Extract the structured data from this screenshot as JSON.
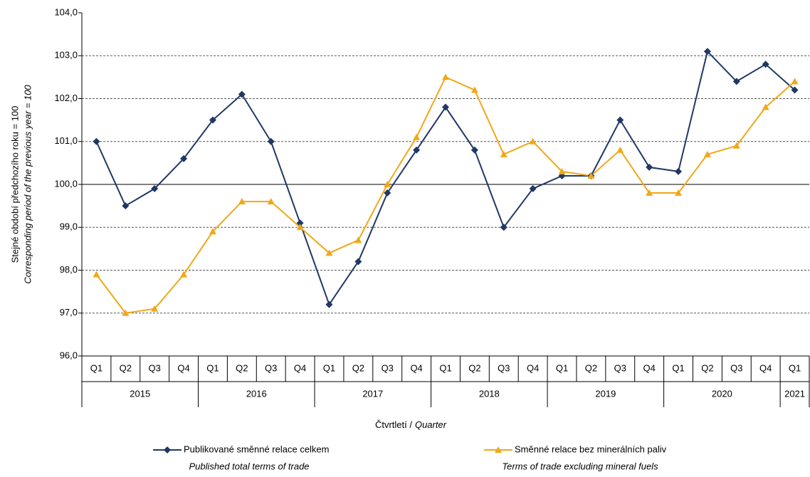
{
  "chart_data": {
    "type": "line",
    "y_label": "Stejné období předchozího roku = 100",
    "y_label_en": "Corresponding period of  the previous year = 100",
    "x_label": "Čtvrtletí /",
    "x_label_en": "Quarter",
    "categories": [
      "Q1",
      "Q2",
      "Q3",
      "Q4",
      "Q1",
      "Q2",
      "Q3",
      "Q4",
      "Q1",
      "Q2",
      "Q3",
      "Q4",
      "Q1",
      "Q2",
      "Q3",
      "Q4",
      "Q1",
      "Q2",
      "Q3",
      "Q4",
      "Q1",
      "Q2",
      "Q3",
      "Q4",
      "Q1"
    ],
    "years": [
      "2015",
      "2015",
      "2015",
      "2015",
      "2016",
      "2016",
      "2016",
      "2016",
      "2017",
      "2017",
      "2017",
      "2017",
      "2018",
      "2018",
      "2018",
      "2018",
      "2019",
      "2019",
      "2019",
      "2019",
      "2020",
      "2020",
      "2020",
      "2020",
      "2021"
    ],
    "series": [
      {
        "name": "Publikované směnné relace celkem",
        "name_en": "Published total terms of trade",
        "color": "#1f3864",
        "marker": "diamond",
        "values": [
          101.0,
          99.5,
          99.9,
          100.6,
          101.5,
          102.1,
          101.0,
          99.1,
          97.2,
          98.2,
          99.8,
          100.8,
          101.8,
          100.8,
          99.0,
          99.9,
          100.2,
          100.2,
          101.5,
          100.4,
          100.3,
          103.1,
          102.4,
          102.8,
          102.2
        ]
      },
      {
        "name": "Směnné relace bez minerálních paliv",
        "name_en": "Terms of trade excluding mineral fuels",
        "color": "#f0a818",
        "marker": "triangle",
        "values": [
          97.9,
          97.0,
          97.1,
          97.9,
          98.9,
          99.6,
          99.6,
          99.0,
          98.4,
          98.7,
          100.0,
          101.1,
          102.5,
          102.2,
          100.7,
          101.0,
          100.3,
          100.2,
          100.8,
          99.8,
          99.8,
          100.7,
          100.9,
          101.8,
          102.4
        ]
      }
    ],
    "ylim": [
      96,
      104
    ],
    "yticks": [
      {
        "value": 96,
        "label": "96,0"
      },
      {
        "value": 97,
        "label": "97,0"
      },
      {
        "value": 98,
        "label": "98,0"
      },
      {
        "value": 99,
        "label": "99,0"
      },
      {
        "value": 100,
        "label": "100,0"
      },
      {
        "value": 101,
        "label": "101,0"
      },
      {
        "value": 102,
        "label": "102,0"
      },
      {
        "value": 103,
        "label": "103,0"
      },
      {
        "value": 104,
        "label": "104,0"
      }
    ],
    "grid": true,
    "baseline": 100,
    "legend": "bottom"
  }
}
